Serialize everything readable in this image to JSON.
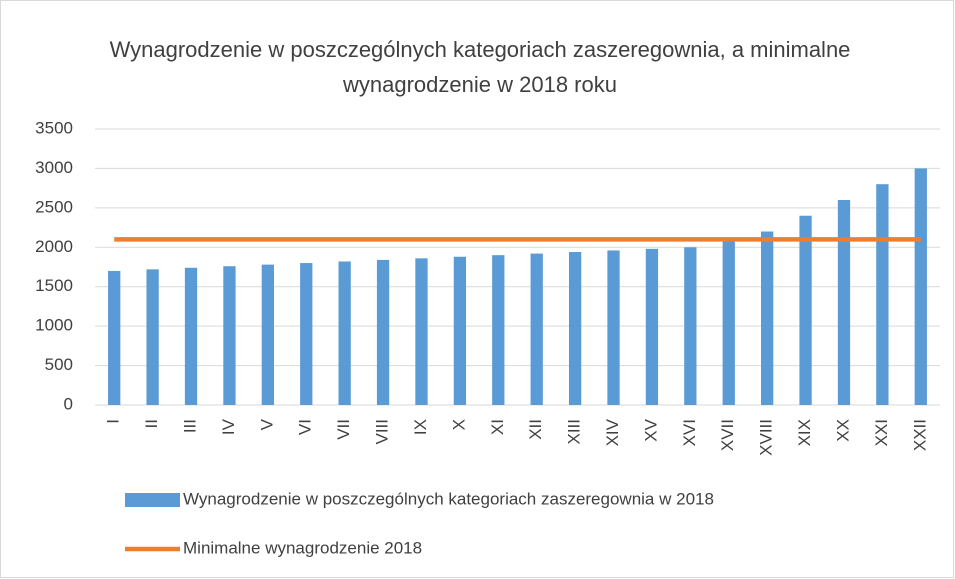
{
  "chart_data": {
    "type": "bar",
    "title": "Wynagrodzenie w poszczególnych kategoriach zaszeregownia, a minimalne wynagrodzenie w 2018 roku",
    "categories": [
      "I",
      "II",
      "III",
      "IV",
      "V",
      "VI",
      "VII",
      "VIII",
      "IX",
      "X",
      "XI",
      "XII",
      "XIII",
      "XIV",
      "XV",
      "XVI",
      "XVII",
      "XVIII",
      "XIX",
      "XX",
      "XXI",
      "XXII"
    ],
    "series": [
      {
        "name": "Wynagrodzenie w poszczególnych kategoriach zaszeregownia w 2018",
        "type": "bar",
        "color": "#5b9bd5",
        "values": [
          1700,
          1720,
          1740,
          1760,
          1780,
          1800,
          1820,
          1840,
          1860,
          1880,
          1900,
          1920,
          1940,
          1960,
          1980,
          2000,
          2100,
          2200,
          2400,
          2600,
          2800,
          3000
        ]
      },
      {
        "name": "Minimalne wynagrodzenie 2018",
        "type": "line",
        "color": "#ed7d31",
        "values": [
          2100,
          2100,
          2100,
          2100,
          2100,
          2100,
          2100,
          2100,
          2100,
          2100,
          2100,
          2100,
          2100,
          2100,
          2100,
          2100,
          2100,
          2100,
          2100,
          2100,
          2100,
          2100
        ]
      }
    ],
    "ylim": [
      0,
      3500
    ],
    "yticks": [
      0,
      500,
      1000,
      1500,
      2000,
      2500,
      3000,
      3500
    ],
    "grid": true,
    "legend": "bottom"
  }
}
